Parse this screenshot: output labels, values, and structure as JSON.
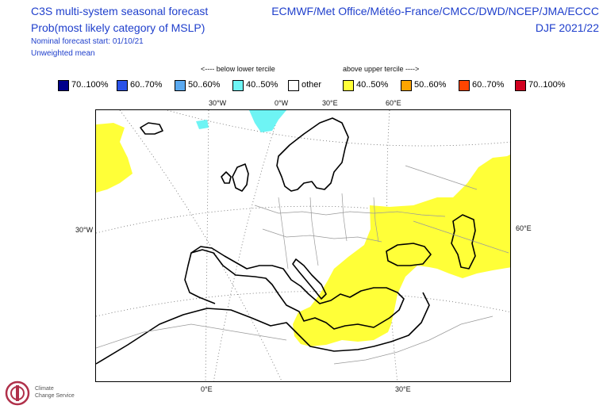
{
  "header": {
    "title_line1": "C3S multi-system seasonal forecast",
    "title_line2": "Prob(most likely category of MSLP)",
    "nominal_start": "Nominal forecast start: 01/10/21",
    "weighting": "Unweighted mean",
    "systems": "ECMWF/Met Office/Météo-France/CMCC/DWD/NCEP/JMA/ECCC",
    "season": "DJF 2021/22"
  },
  "legend": {
    "below_caption": "<---- below lower tercile",
    "above_caption": "above upper tercile ---->",
    "items": [
      {
        "label": "70..100%",
        "color": "#00008b"
      },
      {
        "label": "60..70%",
        "color": "#2a52e8"
      },
      {
        "label": "50..60%",
        "color": "#5aa9f0"
      },
      {
        "label": "40..50%",
        "color": "#6ef4f4"
      },
      {
        "label": "other",
        "color": "#ffffff"
      },
      {
        "label": "40..50%",
        "color": "#ffff38"
      },
      {
        "label": "50..60%",
        "color": "#ffa500"
      },
      {
        "label": "60..70%",
        "color": "#ff4500"
      },
      {
        "label": "70..100%",
        "color": "#d1001f"
      }
    ]
  },
  "map_axes": {
    "top": [
      "30°W",
      "0°W",
      "30°E",
      "60°E"
    ],
    "left": "30°W",
    "right": "60°E",
    "bottom": [
      "0°E",
      "30°E"
    ]
  },
  "logo": {
    "line1": "Climate",
    "line2": "Change Service"
  }
}
